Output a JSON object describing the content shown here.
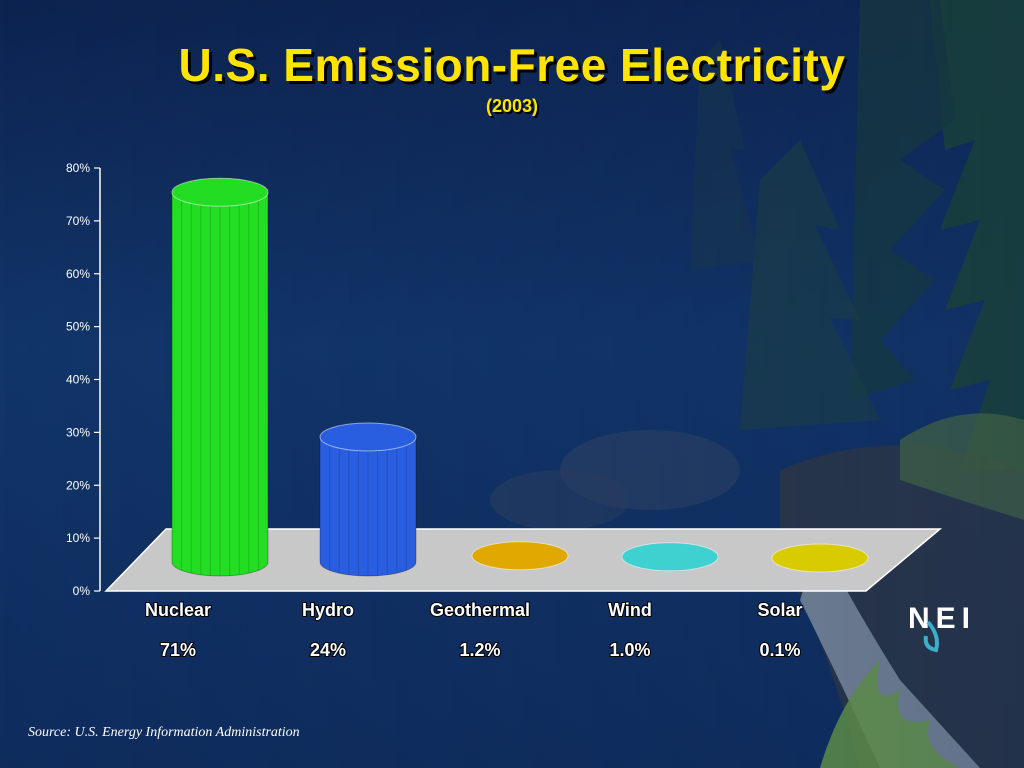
{
  "slide": {
    "title": "U.S. Emission-Free Electricity",
    "subtitle": "(2003)",
    "source": "Source: U.S. Energy Information Administration",
    "logo_text": "NEI"
  },
  "chart_data": {
    "type": "bar",
    "title": "U.S. Emission-Free Electricity",
    "subtitle": "(2003)",
    "categories": [
      "Nuclear",
      "Hydro",
      "Geothermal",
      "Wind",
      "Solar"
    ],
    "values": [
      71,
      24,
      1.2,
      1.0,
      0.1
    ],
    "value_labels": [
      "71%",
      "24%",
      "1.2%",
      "1.0%",
      "0.1%"
    ],
    "y_ticks": [
      "0%",
      "10%",
      "20%",
      "30%",
      "40%",
      "50%",
      "60%",
      "70%",
      "80%"
    ],
    "ylim": [
      0,
      80
    ],
    "colors": [
      "#22dd22",
      "#2a5ee0",
      "#e0a800",
      "#3fd0d0",
      "#d8cc00"
    ],
    "grid": false,
    "legend": "none"
  }
}
